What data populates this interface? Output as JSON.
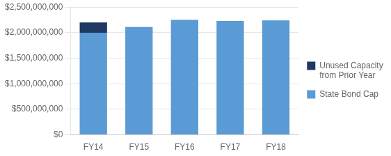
{
  "chart_data": {
    "type": "bar",
    "stacked": true,
    "categories": [
      "FY14",
      "FY15",
      "FY16",
      "FY17",
      "FY18"
    ],
    "series": [
      {
        "name": "State Bond Cap",
        "color": "#5B9BD5",
        "values": [
          2000000000,
          2110000000,
          2250000000,
          2230000000,
          2240000000
        ]
      },
      {
        "name": "Unused Capacity\nfrom Prior Year",
        "color": "#1F3864",
        "values": [
          198000000,
          0,
          0,
          0,
          0
        ]
      }
    ],
    "ylim": [
      0,
      2500000000
    ],
    "yticks": [
      {
        "value": 0,
        "label": "$0"
      },
      {
        "value": 500000000,
        "label": "$500,000,000"
      },
      {
        "value": 1000000000,
        "label": "$1,000,000,000"
      },
      {
        "value": 1500000000,
        "label": "$1,500,000,000"
      },
      {
        "value": 2000000000,
        "label": "$2,000,000,000"
      },
      {
        "value": 2500000000,
        "label": "$2,500,000,000"
      }
    ],
    "grid": true,
    "legend": "right"
  }
}
